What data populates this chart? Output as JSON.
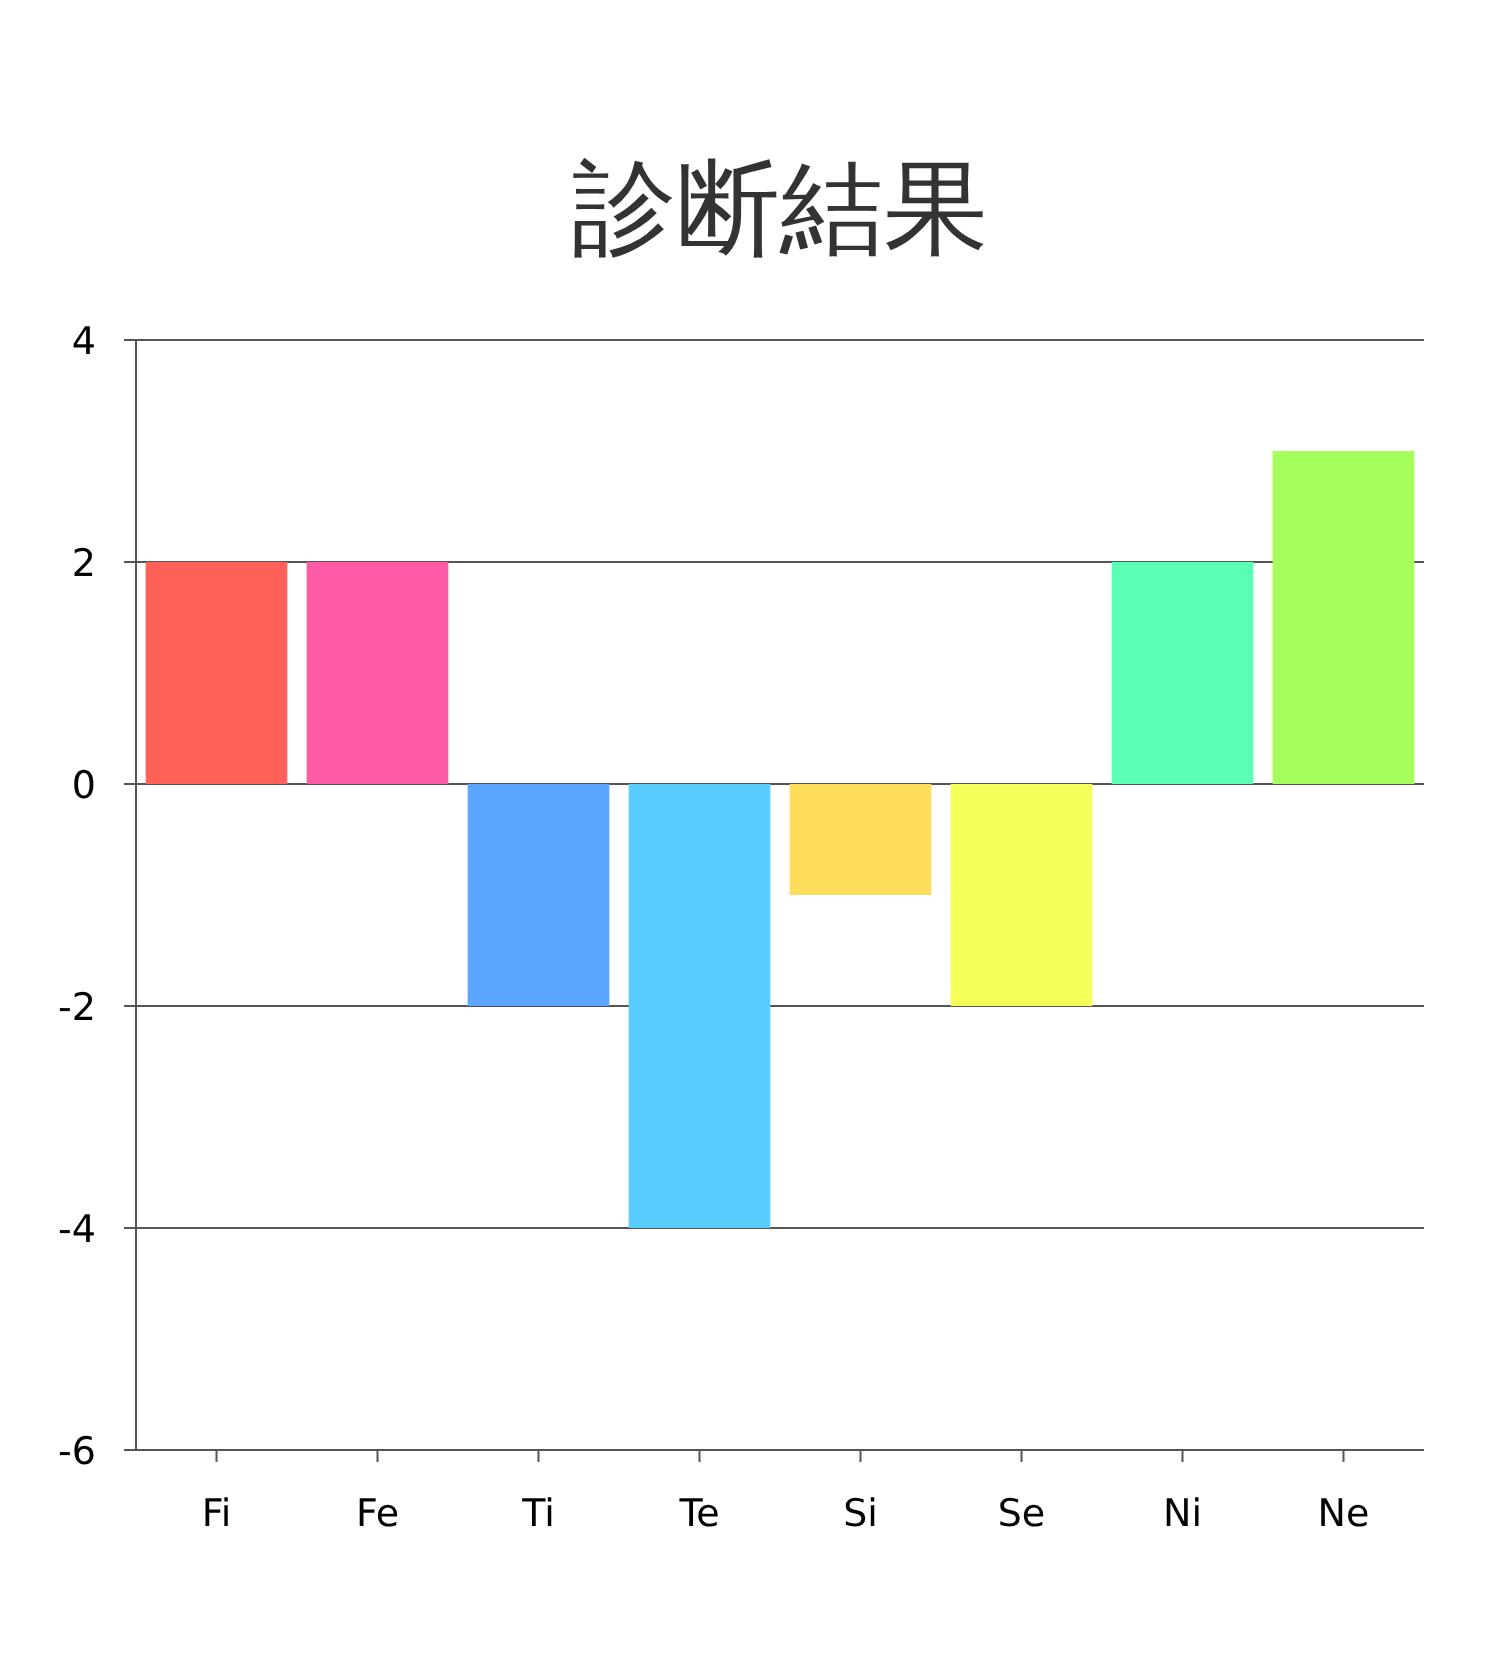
{
  "chart_data": {
    "type": "bar",
    "title": "診断結果",
    "categories": [
      "Fi",
      "Fe",
      "Ti",
      "Te",
      "Si",
      "Se",
      "Ni",
      "Ne"
    ],
    "values": [
      2,
      2,
      -2,
      -4,
      -1,
      -2,
      2,
      3
    ],
    "colors": [
      "#ff6159",
      "#ff5aa5",
      "#5aa5ff",
      "#5acdff",
      "#ffdc5a",
      "#f5ff5a",
      "#5affb4",
      "#a5ff5a"
    ],
    "ylim": [
      -6,
      4
    ],
    "yticks": [
      -6,
      -4,
      -2,
      0,
      2,
      4
    ],
    "grid": "y"
  }
}
